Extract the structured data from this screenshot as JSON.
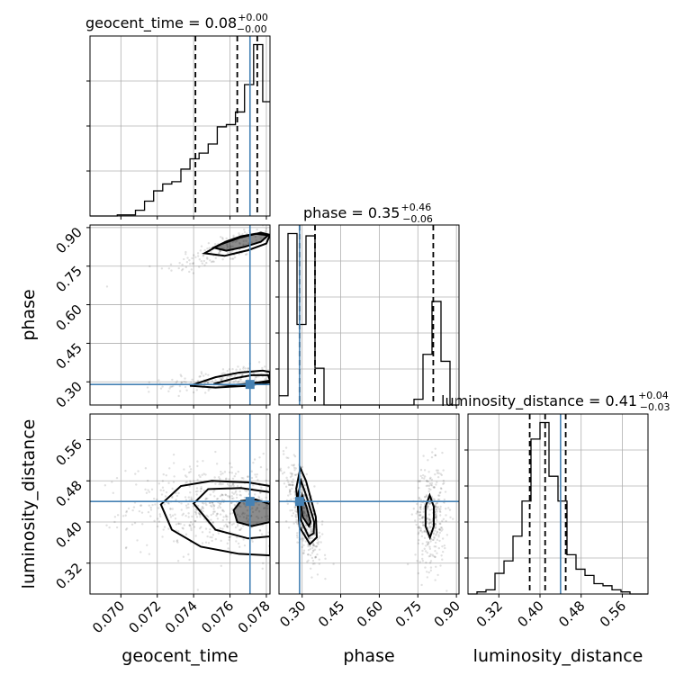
{
  "colors": {
    "truth": "#4682b4",
    "hist": "#000000",
    "grid": "#b0b0b0",
    "samples": "#000000"
  },
  "chart_data": {
    "type": "corner",
    "parameters": [
      {
        "key": "geocent_time",
        "label": "geocent_time",
        "range": [
          0.0683,
          0.0782
        ],
        "ticks": [
          "0.070",
          "0.072",
          "0.074",
          "0.076",
          "0.078"
        ],
        "tick_values": [
          0.07,
          0.072,
          0.074,
          0.076,
          0.078
        ],
        "truth": 0.0771,
        "title": {
          "main": "geocent_time = 0.08",
          "sup": "+0.00",
          "sub": "−0.00"
        },
        "quantiles": [
          0.0741,
          0.0764,
          0.0775
        ]
      },
      {
        "key": "phase",
        "label": "phase",
        "range": [
          0.21,
          0.91
        ],
        "ticks": [
          "0.30",
          "0.45",
          "0.60",
          "0.75",
          "0.90"
        ],
        "tick_values": [
          0.3,
          0.45,
          0.6,
          0.75,
          0.9
        ],
        "truth": 0.29,
        "title": {
          "main": "phase = 0.35",
          "sup": "+0.46",
          "sub": "−0.06"
        },
        "quantiles": [
          0.29,
          0.35,
          0.81
        ]
      },
      {
        "key": "luminosity_distance",
        "label": "luminosity_distance",
        "range": [
          0.26,
          0.61
        ],
        "ticks": [
          "0.32",
          "0.40",
          "0.48",
          "0.56"
        ],
        "tick_values": [
          0.32,
          0.4,
          0.48,
          0.56
        ],
        "truth": 0.44,
        "title": {
          "main": "luminosity_distance = 0.41",
          "sup": "+0.04",
          "sub": "−0.03"
        },
        "quantiles": [
          0.38,
          0.41,
          0.45
        ]
      }
    ],
    "histograms": [
      {
        "param": "geocent_time",
        "edges": [
          0.0683,
          0.0688,
          0.0693,
          0.0698,
          0.0703,
          0.0708,
          0.0713,
          0.0718,
          0.0723,
          0.0728,
          0.0733,
          0.0738,
          0.0743,
          0.0748,
          0.0753,
          0.0758,
          0.0763,
          0.0768,
          0.0773,
          0.0778,
          0.0782
        ],
        "counts": [
          0,
          0,
          0,
          1,
          1,
          5,
          13,
          22,
          28,
          30,
          41,
          50,
          55,
          63,
          78,
          80,
          91,
          115,
          150,
          100
        ]
      },
      {
        "param": "phase",
        "edges": [
          0.21,
          0.245,
          0.28,
          0.315,
          0.35,
          0.385,
          0.42,
          0.455,
          0.49,
          0.525,
          0.56,
          0.595,
          0.63,
          0.665,
          0.7,
          0.735,
          0.77,
          0.805,
          0.84,
          0.875,
          0.91
        ],
        "counts": [
          8,
          149,
          70,
          147,
          32,
          0,
          0,
          0,
          0,
          0,
          0,
          0,
          0,
          0,
          0,
          5,
          44,
          90,
          38,
          0
        ]
      },
      {
        "param": "luminosity_distance",
        "edges": [
          0.26,
          0.2775,
          0.295,
          0.3125,
          0.33,
          0.3475,
          0.365,
          0.3825,
          0.4,
          0.4175,
          0.435,
          0.4525,
          0.47,
          0.4875,
          0.505,
          0.5225,
          0.54,
          0.5575,
          0.575,
          0.5925,
          0.61
        ],
        "counts": [
          0,
          1,
          2,
          10,
          16,
          28,
          45,
          75,
          83,
          57,
          45,
          19,
          12,
          9,
          5,
          4,
          2,
          1,
          0,
          0
        ]
      }
    ],
    "pairs": [
      {
        "x": "geocent_time",
        "y": "phase",
        "clusters": [
          {
            "cx": 0.0757,
            "cy": 0.818,
            "sx": 0.0016,
            "sy": 0.05,
            "rho": 0.8,
            "n": 160
          },
          {
            "cx": 0.076,
            "cy": 0.315,
            "sx": 0.0018,
            "sy": 0.025,
            "rho": 0.6,
            "n": 200
          }
        ],
        "contours": [
          {
            "points": [
              [
                0.0751,
                0.822
              ],
              [
                0.0758,
                0.846
              ],
              [
                0.0766,
                0.866
              ],
              [
                0.0774,
                0.876
              ],
              [
                0.0781,
                0.87
              ],
              [
                0.0777,
                0.845
              ],
              [
                0.0768,
                0.825
              ],
              [
                0.0758,
                0.81
              ],
              [
                0.0751,
                0.822
              ]
            ]
          },
          {
            "points": [
              [
                0.0746,
                0.8
              ],
              [
                0.0755,
                0.835
              ],
              [
                0.0766,
                0.862
              ],
              [
                0.0777,
                0.88
              ],
              [
                0.0782,
                0.872
              ],
              [
                0.078,
                0.838
              ],
              [
                0.077,
                0.812
              ],
              [
                0.0757,
                0.79
              ],
              [
                0.0746,
                0.8
              ]
            ]
          },
          {
            "points": [
              [
                0.0751,
                0.292
              ],
              [
                0.0762,
                0.313
              ],
              [
                0.0772,
                0.326
              ],
              [
                0.0781,
                0.326
              ],
              [
                0.0782,
                0.305
              ],
              [
                0.0772,
                0.294
              ],
              [
                0.076,
                0.287
              ],
              [
                0.0751,
                0.292
              ]
            ]
          },
          {
            "points": [
              [
                0.0738,
                0.285
              ],
              [
                0.0752,
                0.318
              ],
              [
                0.0765,
                0.336
              ],
              [
                0.0778,
                0.344
              ],
              [
                0.0782,
                0.338
              ],
              [
                0.0782,
                0.298
              ],
              [
                0.0768,
                0.284
              ],
              [
                0.0752,
                0.278
              ],
              [
                0.0738,
                0.285
              ]
            ]
          }
        ]
      },
      {
        "x": "geocent_time",
        "y": "luminosity_distance",
        "clusters": [
          {
            "cx": 0.0755,
            "cy": 0.43,
            "sx": 0.0025,
            "sy": 0.042,
            "rho": 0.0,
            "n": 600
          }
        ],
        "contours": [
          {
            "points": [
              [
                0.0762,
                0.423
              ],
              [
                0.0766,
                0.441
              ],
              [
                0.0774,
                0.444
              ],
              [
                0.0782,
                0.435
              ],
              [
                0.0782,
                0.4
              ],
              [
                0.0772,
                0.392
              ],
              [
                0.0764,
                0.4
              ],
              [
                0.0762,
                0.423
              ]
            ]
          },
          {
            "points": [
              [
                0.074,
                0.436
              ],
              [
                0.0748,
                0.464
              ],
              [
                0.0766,
                0.466
              ],
              [
                0.0782,
                0.458
              ],
              [
                0.0782,
                0.372
              ],
              [
                0.077,
                0.368
              ],
              [
                0.0752,
                0.385
              ],
              [
                0.074,
                0.436
              ]
            ]
          },
          {
            "points": [
              [
                0.0722,
                0.434
              ],
              [
                0.0733,
                0.47
              ],
              [
                0.075,
                0.48
              ],
              [
                0.077,
                0.477
              ],
              [
                0.0782,
                0.47
              ],
              [
                0.0782,
                0.335
              ],
              [
                0.0765,
                0.338
              ],
              [
                0.0744,
                0.352
              ],
              [
                0.0728,
                0.385
              ],
              [
                0.0722,
                0.434
              ]
            ]
          }
        ]
      },
      {
        "x": "phase",
        "y": "luminosity_distance",
        "clusters": [
          {
            "cx": 0.31,
            "cy": 0.415,
            "sx": 0.035,
            "sy": 0.05,
            "rho": -0.7,
            "n": 400
          },
          {
            "cx": 0.8,
            "cy": 0.41,
            "sx": 0.03,
            "sy": 0.05,
            "rho": 0.0,
            "n": 350
          }
        ],
        "contours": [
          {
            "points": [
              [
                0.293,
                0.438
              ],
              [
                0.3,
                0.452
              ],
              [
                0.318,
                0.428
              ],
              [
                0.333,
                0.4
              ],
              [
                0.326,
                0.392
              ],
              [
                0.302,
                0.41
              ],
              [
                0.293,
                0.438
              ]
            ]
          },
          {
            "points": [
              [
                0.283,
                0.45
              ],
              [
                0.296,
                0.48
              ],
              [
                0.318,
                0.448
              ],
              [
                0.347,
                0.4
              ],
              [
                0.345,
                0.378
              ],
              [
                0.325,
                0.372
              ],
              [
                0.295,
                0.404
              ],
              [
                0.283,
                0.45
              ]
            ]
          },
          {
            "points": [
              [
                0.277,
                0.465
              ],
              [
                0.293,
                0.505
              ],
              [
                0.315,
                0.48
              ],
              [
                0.353,
                0.41
              ],
              [
                0.357,
                0.37
              ],
              [
                0.33,
                0.357
              ],
              [
                0.29,
                0.39
              ],
              [
                0.277,
                0.465
              ]
            ]
          },
          {
            "points": [
              [
                0.78,
                0.43
              ],
              [
                0.796,
                0.452
              ],
              [
                0.812,
                0.43
              ],
              [
                0.812,
                0.392
              ],
              [
                0.797,
                0.37
              ],
              [
                0.78,
                0.392
              ],
              [
                0.78,
                0.43
              ]
            ]
          }
        ]
      }
    ]
  }
}
